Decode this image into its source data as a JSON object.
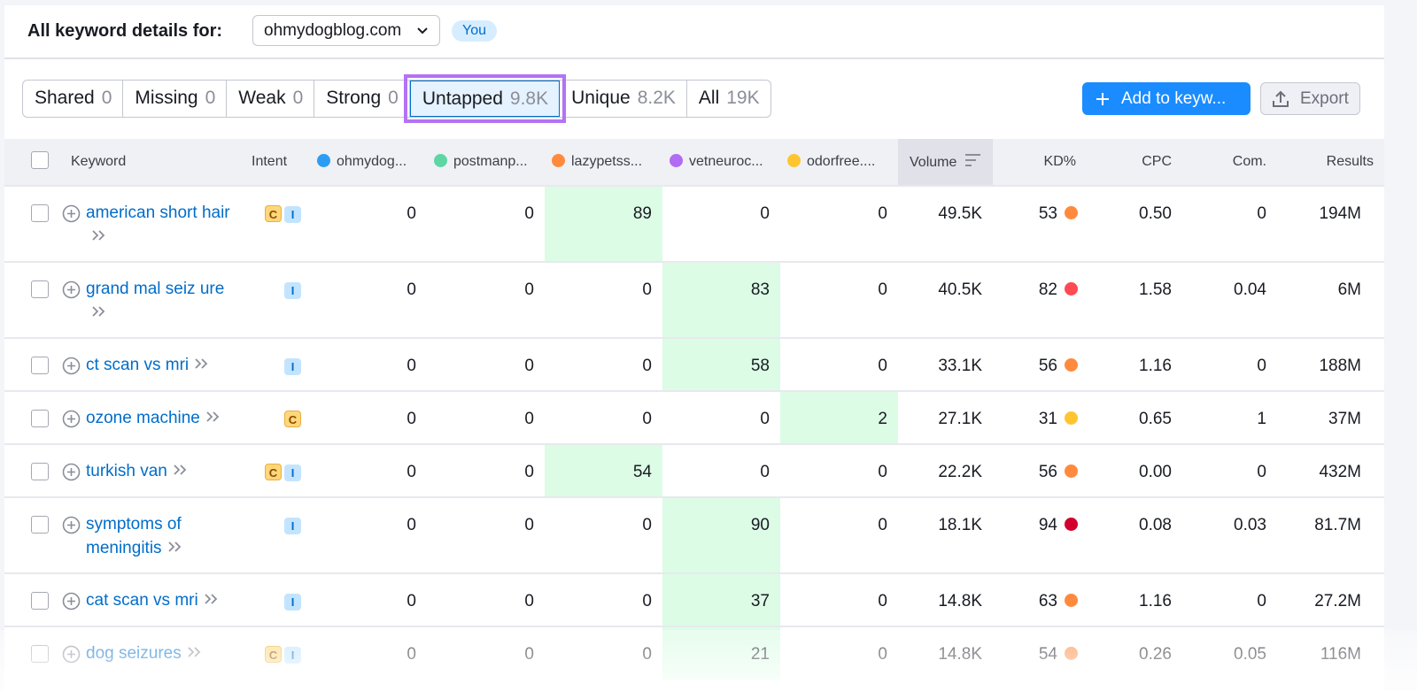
{
  "header": {
    "label": "All keyword details for:",
    "domain": "ohmydogblog.com",
    "badge": "You"
  },
  "tabs": [
    {
      "name": "Shared",
      "count": "0"
    },
    {
      "name": "Missing",
      "count": "0"
    },
    {
      "name": "Weak",
      "count": "0"
    },
    {
      "name": "Strong",
      "count": "0"
    },
    {
      "name": "Untapped",
      "count": "9.8K",
      "active": true
    },
    {
      "name": "Unique",
      "count": "8.2K"
    },
    {
      "name": "All",
      "count": "19K"
    }
  ],
  "buttons": {
    "add": "Add to keyw...",
    "export": "Export"
  },
  "table": {
    "columns": {
      "keyword": "Keyword",
      "intent": "Intent",
      "volume": "Volume",
      "kd": "KD%",
      "cpc": "CPC",
      "com": "Com.",
      "results": "Results"
    },
    "competitors": [
      {
        "name": "ohmydog...",
        "color": "#2d9cf4"
      },
      {
        "name": "postmanp...",
        "color": "#5ed6a4"
      },
      {
        "name": "lazypetss...",
        "color": "#ff8a3d"
      },
      {
        "name": "vetneuroc...",
        "color": "#b06cf2"
      },
      {
        "name": "odorfree....",
        "color": "#ffc530"
      }
    ],
    "rows": [
      {
        "keyword": "american short hair",
        "intent": [
          "C",
          "I"
        ],
        "positions": [
          "0",
          "0",
          "89",
          "0",
          "0"
        ],
        "volume": "49.5K",
        "kd": "53",
        "kd_color": "#ff8a3d",
        "cpc": "0.50",
        "com": "0",
        "results": "194M"
      },
      {
        "keyword": "grand mal seiz ure",
        "intent": [
          "I"
        ],
        "positions": [
          "0",
          "0",
          "0",
          "83",
          "0"
        ],
        "volume": "40.5K",
        "kd": "82",
        "kd_color": "#ff4953",
        "cpc": "1.58",
        "com": "0.04",
        "results": "6M"
      },
      {
        "keyword": "ct scan vs mri",
        "intent": [
          "I"
        ],
        "positions": [
          "0",
          "0",
          "0",
          "58",
          "0"
        ],
        "volume": "33.1K",
        "kd": "56",
        "kd_color": "#ff8a3d",
        "cpc": "1.16",
        "com": "0",
        "results": "188M"
      },
      {
        "keyword": "ozone machine",
        "intent": [
          "C"
        ],
        "positions": [
          "0",
          "0",
          "0",
          "0",
          "2"
        ],
        "volume": "27.1K",
        "kd": "31",
        "kd_color": "#ffc530",
        "cpc": "0.65",
        "com": "1",
        "results": "37M"
      },
      {
        "keyword": "turkish van",
        "intent": [
          "C",
          "I"
        ],
        "positions": [
          "0",
          "0",
          "54",
          "0",
          "0"
        ],
        "volume": "22.2K",
        "kd": "56",
        "kd_color": "#ff8a3d",
        "cpc": "0.00",
        "com": "0",
        "results": "432M"
      },
      {
        "keyword": "symptoms of meningitis",
        "intent": [
          "I"
        ],
        "positions": [
          "0",
          "0",
          "0",
          "90",
          "0"
        ],
        "volume": "18.1K",
        "kd": "94",
        "kd_color": "#d1002f",
        "cpc": "0.08",
        "com": "0.03",
        "results": "81.7M"
      },
      {
        "keyword": "cat scan vs mri",
        "intent": [
          "I"
        ],
        "positions": [
          "0",
          "0",
          "0",
          "37",
          "0"
        ],
        "volume": "14.8K",
        "kd": "63",
        "kd_color": "#ff8a3d",
        "cpc": "1.16",
        "com": "0",
        "results": "27.2M"
      },
      {
        "keyword": "dog seizures",
        "intent": [
          "C",
          "I"
        ],
        "positions": [
          "0",
          "0",
          "0",
          "21",
          "0"
        ],
        "volume": "14.8K",
        "kd": "54",
        "kd_color": "#ff8a3d",
        "cpc": "0.26",
        "com": "0.05",
        "results": "116M"
      }
    ]
  }
}
